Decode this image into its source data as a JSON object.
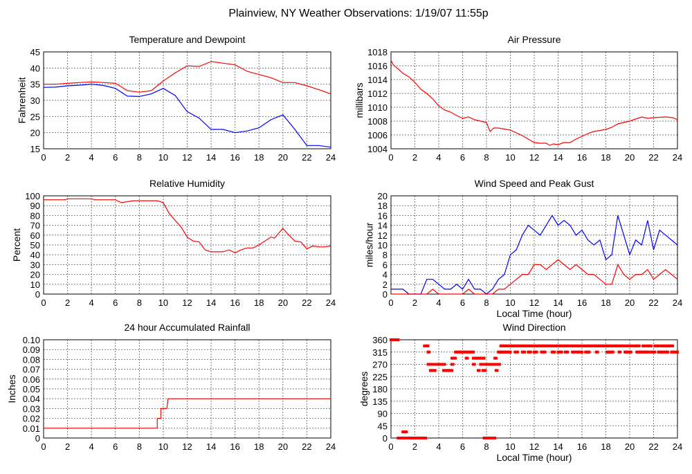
{
  "title": "Plainview, NY Weather Observations: 1/19/07 11:55p",
  "colors": {
    "red": "#ff0000",
    "blue": "#0000ff",
    "grid": "#777777"
  },
  "chart_data": [
    {
      "id": "temperature",
      "type": "line",
      "title": "Temperature and Dewpoint",
      "xlabel": "",
      "ylabel": "Fahrenheit",
      "xlim": [
        0,
        24
      ],
      "ylim": [
        15,
        45
      ],
      "xticks": [
        0,
        2,
        4,
        6,
        8,
        10,
        12,
        14,
        16,
        18,
        20,
        22,
        24
      ],
      "yticks": [
        15,
        20,
        25,
        30,
        35,
        40,
        45
      ],
      "grid": true,
      "x": [
        0,
        1,
        2,
        3,
        4,
        5,
        6,
        7,
        8,
        9,
        10,
        11,
        12,
        13,
        14,
        15,
        16,
        17,
        18,
        19,
        20,
        21,
        22,
        23,
        24
      ],
      "series": [
        {
          "name": "Temperature",
          "color": "#ff0000",
          "values": [
            35,
            35,
            35.3,
            35.5,
            35.7,
            35.5,
            35.3,
            33,
            32.5,
            33,
            36,
            38.5,
            40.7,
            40.5,
            42,
            41.5,
            41,
            39,
            38,
            37,
            35.5,
            35.5,
            34.5,
            33.3,
            32
          ]
        },
        {
          "name": "Dewpoint",
          "color": "#0000ff",
          "values": [
            34,
            34.1,
            34.5,
            34.7,
            35,
            34.6,
            33.7,
            31.3,
            31.2,
            32,
            33.7,
            31.5,
            26.5,
            24.5,
            21,
            21,
            20,
            20.5,
            21.5,
            24,
            25.5,
            21,
            16,
            16,
            15.5
          ]
        }
      ]
    },
    {
      "id": "pressure",
      "type": "line",
      "title": "Air Pressure",
      "xlabel": "",
      "ylabel": "millibars",
      "xlim": [
        0,
        24
      ],
      "ylim": [
        1004,
        1018
      ],
      "xticks": [
        0,
        2,
        4,
        6,
        8,
        10,
        12,
        14,
        16,
        18,
        20,
        22,
        24
      ],
      "yticks": [
        1004,
        1006,
        1008,
        1010,
        1012,
        1014,
        1016,
        1018
      ],
      "grid": true,
      "x": [
        0,
        0.2,
        0.7,
        1,
        1.5,
        2,
        2.5,
        3,
        3.5,
        4,
        4.5,
        5,
        5.5,
        6,
        6.5,
        7,
        7.5,
        8,
        8.3,
        8.6,
        9,
        10,
        11,
        12,
        12.5,
        13,
        13.3,
        13.6,
        14,
        14.5,
        15,
        15.5,
        16,
        16.5,
        17,
        18,
        18.5,
        19,
        20,
        20.5,
        21,
        21.5,
        22,
        23,
        23.6,
        24
      ],
      "series": [
        {
          "name": "Pressure",
          "color": "#ff0000",
          "values": [
            1016.8,
            1016.1,
            1015.4,
            1014.9,
            1014.4,
            1013.6,
            1012.6,
            1012,
            1011.2,
            1010.2,
            1009.6,
            1009.3,
            1008.8,
            1008.4,
            1008.6,
            1008.2,
            1008,
            1007.8,
            1006.5,
            1007,
            1007,
            1006.7,
            1005.9,
            1004.9,
            1004.8,
            1004.8,
            1004.5,
            1004.7,
            1004.6,
            1004.9,
            1004.9,
            1005.4,
            1005.8,
            1006.2,
            1006.5,
            1006.8,
            1007.1,
            1007.6,
            1008,
            1008.3,
            1008.6,
            1008.4,
            1008.5,
            1008.6,
            1008.5,
            1008.2
          ]
        }
      ]
    },
    {
      "id": "humidity",
      "type": "line",
      "title": "Relative Humidity",
      "xlabel": "",
      "ylabel": "Percent",
      "xlim": [
        0,
        24
      ],
      "ylim": [
        0,
        100
      ],
      "xticks": [
        0,
        2,
        4,
        6,
        8,
        10,
        12,
        14,
        16,
        18,
        20,
        22,
        24
      ],
      "yticks": [
        0,
        10,
        20,
        30,
        40,
        50,
        60,
        70,
        80,
        90,
        100
      ],
      "grid": true,
      "x": [
        0,
        1.8,
        2,
        4,
        4.3,
        4.5,
        6,
        6.5,
        7,
        7.5,
        9.5,
        10,
        10.5,
        11,
        11.5,
        12,
        12.5,
        13,
        13.5,
        14,
        15,
        15.5,
        16,
        16.5,
        17,
        17.5,
        18,
        19,
        19.3,
        20,
        20.5,
        21,
        21.5,
        22,
        22.5,
        23,
        23.5,
        24
      ],
      "series": [
        {
          "name": "Relative Humidity",
          "color": "#ff0000",
          "values": [
            96,
            96,
            97,
            97,
            96,
            96,
            96,
            93,
            94,
            95,
            95,
            93,
            82,
            75,
            68,
            58,
            54,
            53,
            45,
            43,
            43,
            45,
            42,
            45,
            47,
            47,
            50,
            58,
            57,
            67,
            60,
            54,
            53,
            46,
            49,
            48,
            48,
            49
          ]
        }
      ]
    },
    {
      "id": "wind_speed",
      "type": "line",
      "title": "Wind Speed and Peak Gust",
      "xlabel": "Local Time (hour)",
      "ylabel": "miles/hour",
      "xlim": [
        0,
        24
      ],
      "ylim": [
        0,
        20
      ],
      "xticks": [
        0,
        2,
        4,
        6,
        8,
        10,
        12,
        14,
        16,
        18,
        20,
        22,
        24
      ],
      "yticks": [
        0,
        2,
        4,
        6,
        8,
        10,
        12,
        14,
        16,
        18,
        20
      ],
      "grid": true,
      "x": [
        0,
        0.5,
        1,
        1.5,
        2,
        2.5,
        3,
        3.5,
        4,
        4.5,
        5,
        5.5,
        6,
        6.5,
        7,
        7.5,
        8,
        8.5,
        9,
        9.5,
        10,
        10.5,
        11,
        11.5,
        12,
        12.5,
        13,
        13.5,
        14,
        14.5,
        15,
        15.5,
        16,
        16.5,
        17,
        17.5,
        18,
        18.5,
        19,
        19.5,
        20,
        20.5,
        21,
        21.5,
        22,
        22.5,
        23,
        23.5,
        24
      ],
      "series": [
        {
          "name": "Peak Gust",
          "color": "#0000ff",
          "values": [
            1,
            1,
            1,
            0,
            0,
            0,
            3,
            3,
            2,
            1,
            1,
            2,
            1,
            3,
            1,
            1,
            0,
            1,
            3,
            4,
            8,
            9,
            12,
            14,
            13,
            12,
            14,
            16,
            14,
            15,
            14,
            12,
            13,
            11,
            10,
            11,
            7,
            8,
            16,
            12,
            8,
            11,
            10,
            15,
            9,
            13,
            12,
            11,
            10
          ]
        },
        {
          "name": "Wind Speed",
          "color": "#ff0000",
          "values": [
            0,
            0,
            0,
            0,
            0,
            0,
            0,
            1,
            0,
            0,
            0,
            0,
            0,
            1,
            0,
            0,
            0,
            0,
            1,
            1,
            2,
            3,
            4,
            4,
            6,
            6,
            5,
            6,
            7,
            6,
            5,
            6,
            5,
            4,
            4,
            3,
            2,
            2,
            6,
            4,
            3,
            4,
            4,
            5,
            3,
            4,
            5,
            4,
            3
          ]
        }
      ]
    },
    {
      "id": "rainfall",
      "type": "line",
      "title": "24 hour Accumulated Rainfall",
      "xlabel": "",
      "ylabel": "Inches",
      "xlim": [
        0,
        24
      ],
      "ylim": [
        0,
        0.1
      ],
      "xticks": [
        0,
        2,
        4,
        6,
        8,
        10,
        12,
        14,
        16,
        18,
        20,
        22,
        24
      ],
      "yticks": [
        "0",
        "0.01",
        "0.02",
        "0.03",
        "0.04",
        "0.05",
        "0.06",
        "0.07",
        "0.08",
        "0.09",
        "0.10"
      ],
      "grid": true,
      "x": [
        0,
        9.5,
        9.5,
        9.8,
        9.8,
        10.3,
        10.4,
        24
      ],
      "series": [
        {
          "name": "Rainfall",
          "color": "#ff0000",
          "values": [
            0.01,
            0.01,
            0.02,
            0.02,
            0.03,
            0.03,
            0.04,
            0.04
          ]
        }
      ]
    },
    {
      "id": "wind_direction",
      "type": "scatter",
      "title": "Wind Direction",
      "xlabel": "Local Time (hour)",
      "ylabel": "degrees",
      "xlim": [
        0,
        24
      ],
      "ylim": [
        0,
        360
      ],
      "xticks": [
        0,
        2,
        4,
        6,
        8,
        10,
        12,
        14,
        16,
        18,
        20,
        22,
        24
      ],
      "yticks": [
        0,
        45,
        90,
        135,
        180,
        225,
        270,
        315,
        360
      ],
      "grid": true,
      "runs_note": "each run = [start hour, end hour, degrees]",
      "runs": [
        [
          0,
          0.6,
          360
        ],
        [
          0.6,
          1,
          0
        ],
        [
          1,
          1.3,
          22.5
        ],
        [
          1.2,
          2.9,
          0
        ],
        [
          2.8,
          3.1,
          337.5
        ],
        [
          3.1,
          3.2,
          315
        ],
        [
          3.1,
          4.5,
          270
        ],
        [
          3.3,
          3.5,
          247.5
        ],
        [
          3.6,
          3.7,
          247.5
        ],
        [
          4.4,
          5.1,
          247.5
        ],
        [
          5.1,
          5.2,
          270
        ],
        [
          5.1,
          5.4,
          292.5
        ],
        [
          5.4,
          6.9,
          315
        ],
        [
          6.3,
          6.4,
          292.5
        ],
        [
          6.9,
          7.6,
          292.5
        ],
        [
          6.9,
          7.0,
          270
        ],
        [
          7.3,
          7.4,
          247.5
        ],
        [
          7.5,
          7.8,
          270
        ],
        [
          7.7,
          7.8,
          292.5
        ],
        [
          7.7,
          7.9,
          247.5
        ],
        [
          7.8,
          8.0,
          0
        ],
        [
          8.0,
          8.3,
          270
        ],
        [
          8.1,
          8.4,
          0
        ],
        [
          8.5,
          8.7,
          0
        ],
        [
          8.4,
          8.7,
          270
        ],
        [
          8.7,
          8.8,
          292.5
        ],
        [
          8.8,
          9.1,
          270
        ],
        [
          8.8,
          8.9,
          247.5
        ],
        [
          9,
          9.2,
          315
        ],
        [
          9.2,
          9.5,
          337.5
        ],
        [
          9.2,
          10,
          315
        ],
        [
          9.5,
          19.6,
          337.5
        ],
        [
          19.8,
          20.2,
          337.5
        ],
        [
          20.4,
          20.8,
          337.5
        ],
        [
          21.1,
          21.3,
          337.5
        ],
        [
          21.5,
          21.8,
          337.5
        ],
        [
          22.1,
          22.4,
          337.5
        ],
        [
          22.6,
          23.6,
          337.5
        ],
        [
          10.4,
          10.6,
          315
        ],
        [
          11,
          11.2,
          315
        ],
        [
          11.5,
          11.7,
          315
        ],
        [
          12,
          12.2,
          315
        ],
        [
          12.6,
          12.9,
          315
        ],
        [
          13.5,
          13.7,
          315
        ],
        [
          14,
          14.3,
          315
        ],
        [
          14.6,
          14.8,
          315
        ],
        [
          15.2,
          15.4,
          315
        ],
        [
          15.6,
          16,
          315
        ],
        [
          16.3,
          16.6,
          315
        ],
        [
          17.2,
          17.3,
          315
        ],
        [
          18.1,
          18.6,
          315
        ],
        [
          19.1,
          19.2,
          315
        ],
        [
          19.6,
          20.1,
          315
        ],
        [
          20.6,
          21.6,
          315
        ],
        [
          21.8,
          22.1,
          315
        ],
        [
          22.4,
          23.2,
          315
        ],
        [
          23.5,
          24,
          315
        ]
      ]
    }
  ]
}
